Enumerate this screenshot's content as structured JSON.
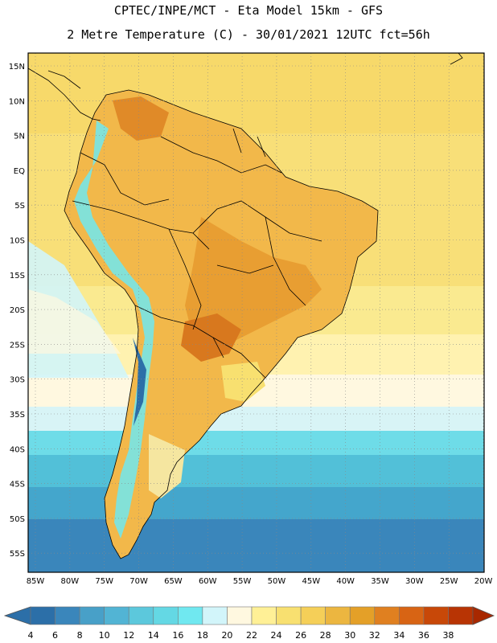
{
  "title_line1": "CPTEC/INPE/MCT  -   Eta Model 15km  -  GFS",
  "title_line2": "2 Metre Temperature (C) - 30/01/2021 12UTC fct=56h",
  "lat_labels": [
    "15N",
    "10N",
    "5N",
    "EQ",
    "5S",
    "10S",
    "15S",
    "20S",
    "25S",
    "30S",
    "35S",
    "40S",
    "45S",
    "50S",
    "55S"
  ],
  "lon_labels": [
    "85W",
    "80W",
    "75W",
    "70W",
    "65W",
    "60W",
    "55W",
    "50W",
    "45W",
    "40W",
    "35W",
    "30W",
    "25W",
    "20W"
  ],
  "colorbar": {
    "labels": [
      "4",
      "6",
      "8",
      "10",
      "12",
      "14",
      "16",
      "18",
      "20",
      "22",
      "24",
      "26",
      "28",
      "30",
      "32",
      "34",
      "36",
      "38"
    ],
    "colors": [
      "#2c6fa8",
      "#3a86bb",
      "#48a0c8",
      "#52b4d4",
      "#5cc8dc",
      "#64d8e4",
      "#70e8f0",
      "#d2f5fa",
      "#fff8e0",
      "#fff096",
      "#f8e070",
      "#f5cf58",
      "#ecb640",
      "#e4a028",
      "#e08020",
      "#d86414",
      "#c84808",
      "#b83404"
    ]
  }
}
